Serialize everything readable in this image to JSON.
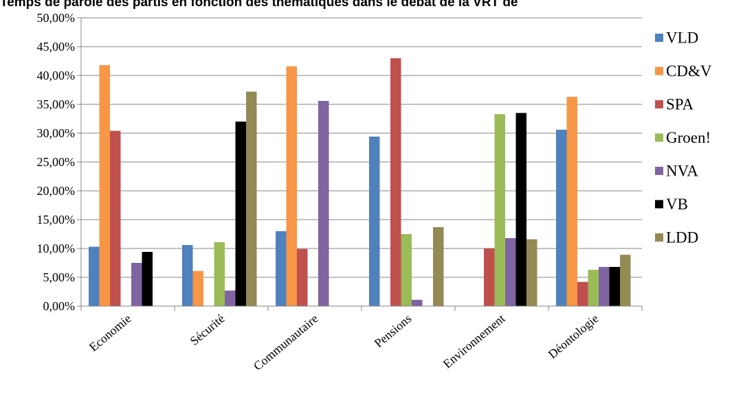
{
  "chart_data": {
    "type": "bar",
    "title": "Temps de parole des partis en fonction des thématiques dans le débat de la VRT de",
    "xlabel": "",
    "ylabel": "",
    "ylim": [
      0,
      50
    ],
    "y_ticks": [
      "0,00%",
      "5,00%",
      "10,00%",
      "15,00%",
      "20,00%",
      "25,00%",
      "30,00%",
      "35,00%",
      "40,00%",
      "45,00%",
      "50,00%"
    ],
    "categories": [
      "Economie",
      "Sécurité",
      "Communautaire",
      "Pensions",
      "Environnement",
      "Déontologie"
    ],
    "series": [
      {
        "name": "VLD",
        "color": "#4F81BD",
        "values": [
          10.3,
          10.6,
          13.0,
          29.4,
          0.0,
          30.6
        ]
      },
      {
        "name": "CD&V",
        "color": "#F79646",
        "values": [
          41.8,
          6.1,
          41.6,
          0.0,
          0.0,
          36.3
        ]
      },
      {
        "name": "SPA",
        "color": "#C0504D",
        "values": [
          30.4,
          0.0,
          9.9,
          43.0,
          10.0,
          4.2
        ]
      },
      {
        "name": "Groen!",
        "color": "#9BBB59",
        "values": [
          0.0,
          11.1,
          0.0,
          12.5,
          33.3,
          6.3
        ]
      },
      {
        "name": "NVA",
        "color": "#8064A2",
        "values": [
          7.5,
          2.7,
          35.6,
          1.1,
          11.8,
          6.8
        ]
      },
      {
        "name": "VB",
        "color": "#000000",
        "values": [
          9.4,
          32.0,
          0.0,
          0.0,
          33.5,
          6.8
        ]
      },
      {
        "name": "LDD",
        "color": "#948A54",
        "values": [
          0.0,
          37.2,
          0.0,
          13.7,
          11.6,
          8.9
        ]
      }
    ],
    "grid": true,
    "legend": "right"
  }
}
